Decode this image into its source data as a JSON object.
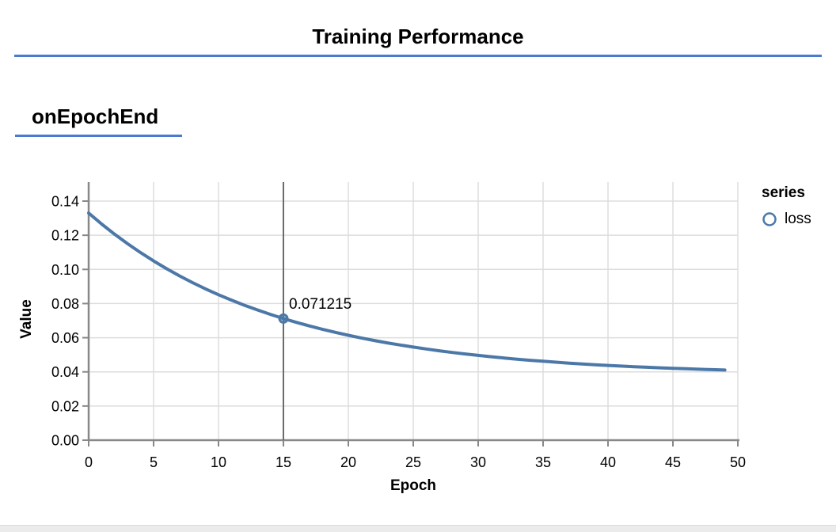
{
  "header": {
    "title": "Training Performance"
  },
  "section": {
    "title": "onEpochEnd"
  },
  "legend": {
    "title": "series",
    "items": [
      {
        "label": "loss",
        "color": "#4c78a8"
      }
    ]
  },
  "axes": {
    "x_title": "Epoch",
    "y_title": "Value"
  },
  "tooltip": {
    "value": "0.071215"
  },
  "colors": {
    "accent": "#4a7bd0",
    "series": "#4c78a8",
    "grid": "#dddddd",
    "axis": "#888888",
    "hover_rule": "#6b6b6b",
    "footer_strip": "#ebebeb",
    "text": "#000000"
  },
  "chart_data": {
    "type": "line",
    "title": "onEpochEnd",
    "xlabel": "Epoch",
    "ylabel": "Value",
    "xlim": [
      0,
      50
    ],
    "ylim": [
      0,
      0.15
    ],
    "grid": true,
    "legend_position": "right",
    "x_ticks": [
      0,
      5,
      10,
      15,
      20,
      25,
      30,
      35,
      40,
      45,
      50
    ],
    "y_ticks": [
      0.0,
      0.02,
      0.04,
      0.06,
      0.08,
      0.1,
      0.12,
      0.14
    ],
    "x": [
      0,
      1,
      2,
      3,
      4,
      5,
      6,
      7,
      8,
      9,
      10,
      11,
      12,
      13,
      14,
      15,
      16,
      17,
      18,
      19,
      20,
      21,
      22,
      23,
      24,
      25,
      26,
      27,
      28,
      29,
      30,
      31,
      32,
      33,
      34,
      35,
      36,
      37,
      38,
      39,
      40,
      41,
      42,
      43,
      44,
      45,
      46,
      47,
      48,
      49
    ],
    "series": [
      {
        "name": "loss",
        "values": [
          0.133,
          0.126577,
          0.120589,
          0.115005,
          0.1098,
          0.104945,
          0.100419,
          0.0962,
          0.092265,
          0.088596,
          0.085176,
          0.081986,
          0.079013,
          0.07624,
          0.073655,
          0.071215,
          0.068997,
          0.066901,
          0.064947,
          0.063125,
          0.061427,
          0.059843,
          0.058366,
          0.056989,
          0.055706,
          0.054509,
          0.053392,
          0.052352,
          0.051382,
          0.050477,
          0.049633,
          0.048847,
          0.048114,
          0.04743,
          0.046792,
          0.046198,
          0.045644,
          0.045127,
          0.044645,
          0.044196,
          0.043777,
          0.043386,
          0.043022,
          0.042683,
          0.042366,
          0.042071,
          0.041796,
          0.041539,
          0.0413,
          0.041077
        ]
      }
    ],
    "highlight": {
      "x": 15,
      "y": 0.071215,
      "label": "0.071215"
    }
  }
}
